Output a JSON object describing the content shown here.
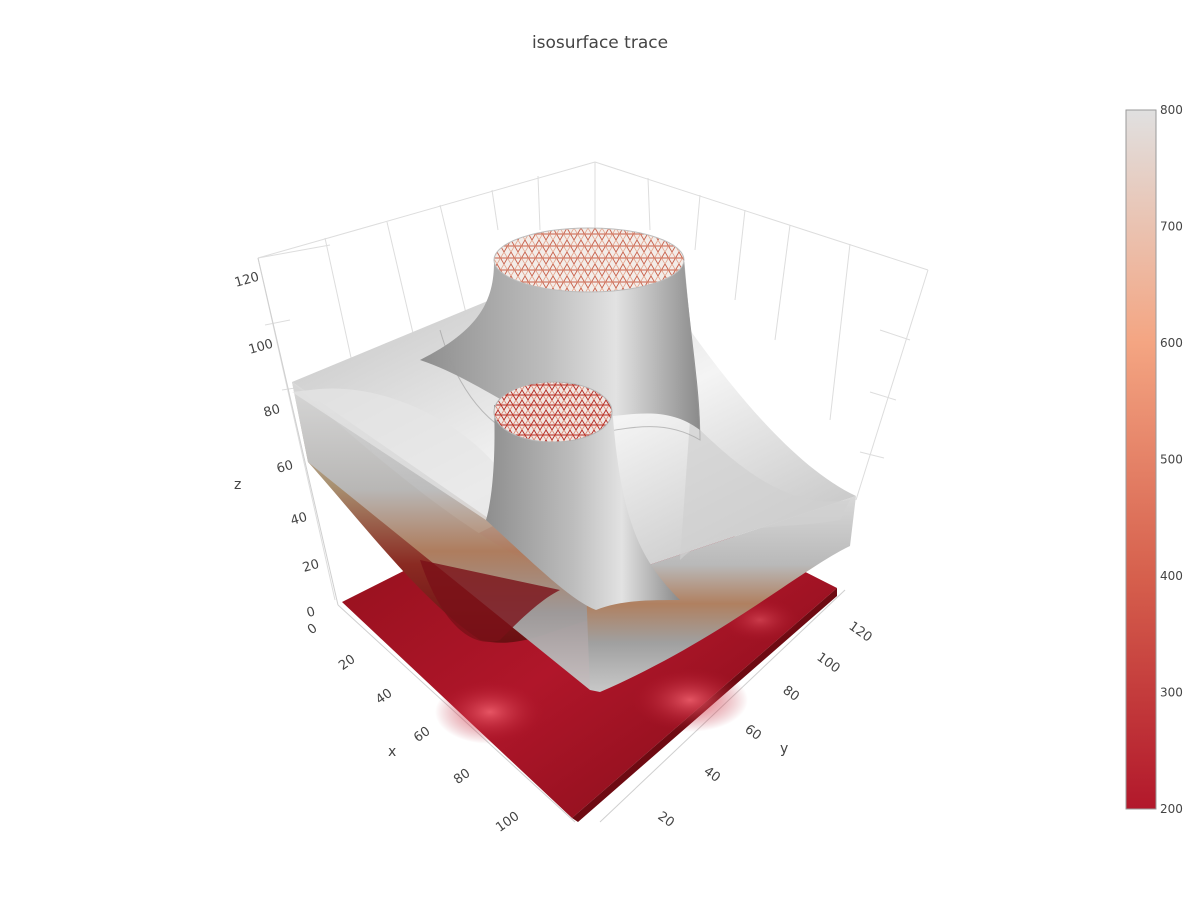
{
  "chart_data": {
    "type": "isosurface",
    "title": "isosurface trace",
    "axes": {
      "x": {
        "label": "x",
        "range": [
          0,
          120
        ],
        "ticks": [
          0,
          20,
          40,
          60,
          80,
          100
        ]
      },
      "y": {
        "label": "y",
        "range": [
          0,
          130
        ],
        "ticks": [
          20,
          40,
          60,
          80,
          100,
          120
        ]
      },
      "z": {
        "label": "z",
        "range": [
          0,
          125
        ],
        "ticks": [
          0,
          20,
          40,
          60,
          80,
          100,
          120
        ]
      }
    },
    "grid": true,
    "colorbar": {
      "range": [
        200,
        800
      ],
      "ticks": [
        200,
        300,
        400,
        500,
        600,
        700,
        800
      ],
      "colorscale": [
        "#b2182b",
        "#d6604d",
        "#f4a582",
        "#e0e0e0"
      ],
      "placement": "right"
    }
  }
}
